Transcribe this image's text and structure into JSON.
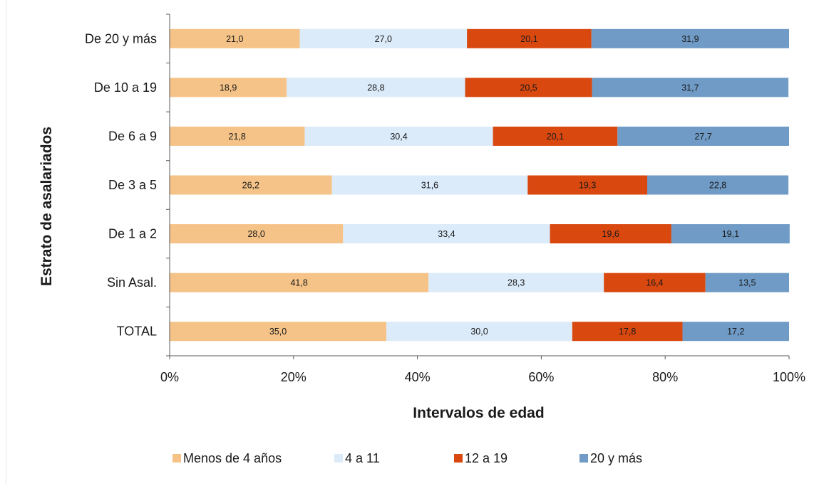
{
  "chart_data": {
    "type": "bar",
    "orientation": "horizontal",
    "stacked": "percent",
    "categories": [
      "De 20 y más",
      "De 10 a 19",
      "De 6 a 9",
      "De 3 a 5",
      "De 1 a 2",
      "Sin Asal.",
      "TOTAL"
    ],
    "series": [
      {
        "name": "Menos de 4 años",
        "color": "#f5c387",
        "values": [
          21.0,
          18.9,
          21.8,
          26.2,
          28.0,
          41.8,
          35.0
        ],
        "labels": [
          "21,0",
          "18,9",
          "21,8",
          "26,2",
          "28,0",
          "41,8",
          "35,0"
        ]
      },
      {
        "name": "4 a 11",
        "color": "#dcebfa",
        "values": [
          27.0,
          28.8,
          30.4,
          31.6,
          33.4,
          28.3,
          30.0
        ],
        "labels": [
          "27,0",
          "28,8",
          "30,4",
          "31,6",
          "33,4",
          "28,3",
          "30,0"
        ]
      },
      {
        "name": "12 a 19",
        "color": "#d9480f",
        "values": [
          20.1,
          20.5,
          20.1,
          19.3,
          19.6,
          16.4,
          17.8
        ],
        "labels": [
          "20,1",
          "20,5",
          "20,1",
          "19,3",
          "19,6",
          "16,4",
          "17,8"
        ]
      },
      {
        "name": "20 y más",
        "color": "#6f9bc6",
        "values": [
          31.9,
          31.7,
          27.7,
          22.8,
          19.1,
          13.5,
          17.2
        ],
        "labels": [
          "31,9",
          "31,7",
          "27,7",
          "22,8",
          "19,1",
          "13,5",
          "17,2"
        ]
      }
    ],
    "xlabel": "Intervalos de edad",
    "ylabel": "Estrato de asalariados",
    "xticks": [
      "0%",
      "20%",
      "40%",
      "60%",
      "80%",
      "100%"
    ],
    "xlim": [
      0,
      100
    ],
    "legend_position": "bottom",
    "grid": false
  }
}
